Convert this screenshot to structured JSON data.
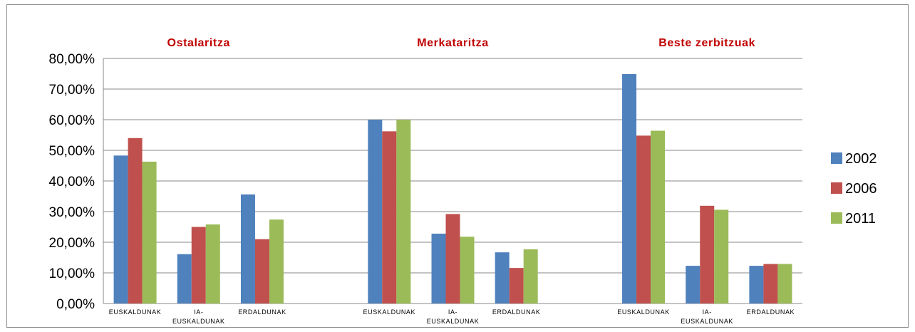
{
  "chart_data": {
    "type": "bar",
    "groups": [
      {
        "title": "Ostalaritza",
        "categories": [
          [
            "EUSKALDUNAK"
          ],
          [
            "IA-",
            "EUSKALDUNAK"
          ],
          [
            "ERDALDUNAK"
          ]
        ],
        "values": {
          "2002": [
            48.3,
            16.1,
            35.6
          ],
          "2006": [
            54.0,
            25.0,
            21.0
          ],
          "2011": [
            46.3,
            25.8,
            27.4
          ]
        }
      },
      {
        "title": "Merkataritza",
        "categories": [
          [
            "EUSKALDUNAK"
          ],
          [
            "IA-",
            "EUSKALDUNAK"
          ],
          [
            "ERDALDUNAK"
          ]
        ],
        "values": {
          "2002": [
            60.0,
            22.8,
            16.7
          ],
          "2006": [
            56.2,
            29.2,
            11.6
          ],
          "2011": [
            60.0,
            21.8,
            17.7
          ]
        }
      },
      {
        "title": "Beste zerbitzuak",
        "categories": [
          [
            "EUSKALDUNAK"
          ],
          [
            "IA-",
            "EUSKALDUNAK"
          ],
          [
            "ERDALDUNAK"
          ]
        ],
        "values": {
          "2002": [
            74.9,
            12.3,
            12.3
          ],
          "2006": [
            54.8,
            31.9,
            12.9
          ],
          "2011": [
            56.4,
            30.6,
            12.9
          ]
        }
      }
    ],
    "series": [
      {
        "name": "2002",
        "color": "#4f81bd"
      },
      {
        "name": "2006",
        "color": "#c0504d"
      },
      {
        "name": "2011",
        "color": "#9bbb59"
      }
    ],
    "y_ticks": [
      "0,00%",
      "10,00%",
      "20,00%",
      "30,00%",
      "40,00%",
      "50,00%",
      "60,00%",
      "70,00%",
      "80,00%"
    ],
    "ylim": [
      0,
      80
    ],
    "ylabel": "",
    "xlabel": "",
    "grid": true,
    "legend_position": "right"
  }
}
